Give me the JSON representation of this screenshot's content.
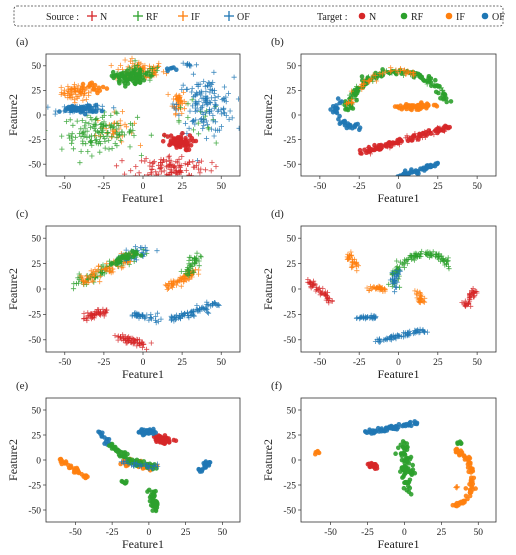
{
  "legend": {
    "source_label": "Source :",
    "target_label": "Target :",
    "entries": [
      {
        "name": "N",
        "color": "#d62728"
      },
      {
        "name": "RF",
        "color": "#2ca02c"
      },
      {
        "name": "IF",
        "color": "#ff7f0e"
      },
      {
        "name": "OF",
        "color": "#1f77b4"
      }
    ]
  },
  "colors": {
    "N": "#d62728",
    "RF": "#2ca02c",
    "IF": "#ff7f0e",
    "OF": "#1f77b4"
  },
  "chart_data": [
    {
      "id": "a",
      "type": "scatter",
      "panel_label": "(a)",
      "xlabel": "Feature1",
      "ylabel": "Feature2",
      "xlim": [
        -62,
        62
      ],
      "ylim": [
        -62,
        62
      ],
      "xticks": [
        -50,
        -25,
        0,
        25,
        50
      ],
      "yticks": [
        -50,
        -25,
        0,
        25,
        50
      ],
      "series": [
        {
          "name": "IF",
          "role": "source",
          "clusters": [
            {
              "cx": -42,
              "cy": 23,
              "sx": 5,
              "sy": 4,
              "n": 70
            },
            {
              "cx": -2,
              "cy": 45,
              "sx": 8,
              "sy": 5,
              "n": 80
            },
            {
              "cx": 23,
              "cy": 14,
              "sx": 2,
              "sy": 6,
              "n": 40
            },
            {
              "cx": -18,
              "cy": -15,
              "sx": 6,
              "sy": 8,
              "n": 30
            }
          ]
        },
        {
          "name": "RF",
          "role": "source",
          "clusters": [
            {
              "cx": -28,
              "cy": -18,
              "sx": 12,
              "sy": 9,
              "n": 130
            },
            {
              "cx": -2,
              "cy": 42,
              "sx": 7,
              "sy": 4,
              "n": 50
            },
            {
              "cx": 35,
              "cy": -10,
              "sx": 8,
              "sy": 12,
              "n": 20
            }
          ]
        },
        {
          "name": "OF",
          "role": "source",
          "clusters": [
            {
              "cx": -38,
              "cy": 6,
              "sx": 8,
              "sy": 2,
              "n": 55
            },
            {
              "cx": 40,
              "cy": 10,
              "sx": 9,
              "sy": 14,
              "n": 140
            },
            {
              "cx": 29,
              "cy": 51,
              "sx": 3,
              "sy": 2,
              "n": 10
            }
          ]
        },
        {
          "name": "N",
          "role": "source",
          "clusters": [
            {
              "cx": 18,
              "cy": -53,
              "sx": 12,
              "sy": 6,
              "n": 110
            }
          ]
        },
        {
          "name": "N",
          "role": "target",
          "clusters": [
            {
              "cx": 22,
              "cy": -28,
              "sx": 5,
              "sy": 4,
              "n": 60
            }
          ]
        },
        {
          "name": "RF",
          "role": "target",
          "clusters": [
            {
              "cx": -9,
              "cy": 38,
              "sx": 5,
              "sy": 4,
              "n": 70
            }
          ]
        },
        {
          "name": "IF",
          "role": "target",
          "clusters": [
            {
              "cx": -30,
              "cy": 27,
              "sx": 4,
              "sy": 3,
              "n": 15
            }
          ]
        },
        {
          "name": "OF",
          "role": "target",
          "clusters": [
            {
              "cx": -40,
              "cy": 6,
              "sx": 6,
              "sy": 2,
              "n": 45
            },
            {
              "cx": 17,
              "cy": 47,
              "sx": 2,
              "sy": 1,
              "n": 6
            }
          ]
        }
      ]
    },
    {
      "id": "b",
      "type": "scatter",
      "panel_label": "(b)",
      "xlabel": "Feature1",
      "ylabel": "Feature2",
      "xlim": [
        -62,
        62
      ],
      "ylim": [
        -62,
        62
      ],
      "xticks": [
        -50,
        -25,
        0,
        25,
        50
      ],
      "yticks": [
        -50,
        -25,
        0,
        25,
        50
      ],
      "series": [
        {
          "name": "RF",
          "role": "target",
          "arc": {
            "cx": 0,
            "cy": 0,
            "rx": 32,
            "ry": 44,
            "a0": 175,
            "a1": 20,
            "n": 110,
            "jit": 1.6
          }
        },
        {
          "name": "RF",
          "role": "source",
          "arc": {
            "cx": 0,
            "cy": 0,
            "rx": 32,
            "ry": 44,
            "a0": 170,
            "a1": 30,
            "n": 60,
            "jit": 1.6
          }
        },
        {
          "name": "IF",
          "role": "source",
          "arc": {
            "cx": 0,
            "cy": 0,
            "rx": 32,
            "ry": 44,
            "a0": 170,
            "a1": 70,
            "n": 45,
            "jit": 1.6
          }
        },
        {
          "name": "IF",
          "role": "target",
          "clusters": [
            {
              "cx": 12,
              "cy": 9,
              "sx": 6,
              "sy": 1.5,
              "n": 60
            }
          ]
        },
        {
          "name": "OF",
          "role": "target",
          "arc": {
            "cx": -24,
            "cy": 6,
            "rx": 16,
            "ry": 18,
            "a0": 150,
            "a1": 270,
            "n": 40,
            "jit": 1.2
          }
        },
        {
          "name": "N",
          "role": "target",
          "line": {
            "x0": -23,
            "y0": -38,
            "x1": 32,
            "y1": -12,
            "n": 90,
            "jit": 1.3
          }
        },
        {
          "name": "N",
          "role": "source",
          "line": {
            "x0": -20,
            "y0": -37,
            "x1": 32,
            "y1": -13,
            "n": 45,
            "jit": 1.6
          }
        },
        {
          "name": "OF",
          "role": "target",
          "line": {
            "x0": 0,
            "y0": -63,
            "x1": 24,
            "y1": -50,
            "n": 60,
            "jit": 1.1
          }
        }
      ]
    },
    {
      "id": "c",
      "type": "scatter",
      "panel_label": "(c)",
      "xlabel": "Feature1",
      "ylabel": "Feature2",
      "xlim": [
        -62,
        62
      ],
      "ylim": [
        -62,
        62
      ],
      "xticks": [
        -50,
        -25,
        0,
        25,
        50
      ],
      "yticks": [
        -50,
        -25,
        0,
        25,
        50
      ],
      "series": [
        {
          "name": "RF",
          "role": "source",
          "line": {
            "x0": -40,
            "y0": 6,
            "x1": -2,
            "y1": 37,
            "n": 90,
            "jit": 3
          }
        },
        {
          "name": "IF",
          "role": "source",
          "line": {
            "x0": -40,
            "y0": 6,
            "x1": -5,
            "y1": 33,
            "n": 60,
            "jit": 3
          }
        },
        {
          "name": "OF",
          "role": "source",
          "line": {
            "x0": -15,
            "y0": 25,
            "x1": 3,
            "y1": 40,
            "n": 35,
            "jit": 2.5
          }
        },
        {
          "name": "RF",
          "role": "target",
          "line": {
            "x0": -22,
            "y0": 25,
            "x1": 0,
            "y1": 37,
            "n": 25,
            "jit": 2
          }
        },
        {
          "name": "IF",
          "role": "source",
          "line": {
            "x0": 15,
            "y0": 1,
            "x1": 35,
            "y1": 18,
            "n": 70,
            "jit": 2
          }
        },
        {
          "name": "RF",
          "role": "source",
          "line": {
            "x0": 28,
            "y0": 14,
            "x1": 34,
            "y1": 34,
            "n": 40,
            "jit": 2
          }
        },
        {
          "name": "N",
          "role": "source",
          "line": {
            "x0": -38,
            "y0": -28,
            "x1": -24,
            "y1": -22,
            "n": 50,
            "jit": 1.6
          }
        },
        {
          "name": "N",
          "role": "source",
          "line": {
            "x0": -15,
            "y0": -47,
            "x1": 1,
            "y1": -56,
            "n": 55,
            "jit": 1.8
          }
        },
        {
          "name": "OF",
          "role": "source",
          "line": {
            "x0": -7,
            "y0": -25,
            "x1": 10,
            "y1": -29,
            "n": 40,
            "jit": 1.6
          }
        },
        {
          "name": "OF",
          "role": "source",
          "line": {
            "x0": 18,
            "y0": -30,
            "x1": 48,
            "y1": -15,
            "n": 80,
            "jit": 2
          }
        }
      ]
    },
    {
      "id": "d",
      "type": "scatter",
      "panel_label": "(d)",
      "xlabel": "Feature1",
      "ylabel": "Feature2",
      "xlim": [
        -62,
        62
      ],
      "ylim": [
        -62,
        62
      ],
      "xticks": [
        -50,
        -25,
        0,
        25,
        50
      ],
      "yticks": [
        -50,
        -25,
        0,
        25,
        50
      ],
      "series": [
        {
          "name": "N",
          "role": "source",
          "line": {
            "x0": -57,
            "y0": 8,
            "x1": -42,
            "y1": -13,
            "n": 50,
            "jit": 1.2
          }
        },
        {
          "name": "N",
          "role": "source",
          "line": {
            "x0": 42,
            "y0": -17,
            "x1": 49,
            "y1": -1,
            "n": 40,
            "jit": 1.2
          }
        },
        {
          "name": "IF",
          "role": "source",
          "line": {
            "x0": -31,
            "y0": 34,
            "x1": -27,
            "y1": 19,
            "n": 30,
            "jit": 1.5
          }
        },
        {
          "name": "IF",
          "role": "source",
          "clusters": [
            {
              "cx": -14,
              "cy": 0,
              "sx": 3,
              "sy": 1.5,
              "n": 30
            }
          ]
        },
        {
          "name": "IF",
          "role": "source",
          "line": {
            "x0": 10,
            "y0": -2,
            "x1": 16,
            "y1": -14,
            "n": 25,
            "jit": 1.5
          }
        },
        {
          "name": "RF",
          "role": "source",
          "arc": {
            "cx": 17,
            "cy": 3,
            "rx": 20,
            "ry": 32,
            "a0": 180,
            "a1": 35,
            "n": 110,
            "jit": 1.5
          }
        },
        {
          "name": "OF",
          "role": "source",
          "arc": {
            "cx": 17,
            "cy": 3,
            "rx": 20,
            "ry": 32,
            "a0": 190,
            "a1": 150,
            "n": 25,
            "jit": 1.2
          }
        },
        {
          "name": "OF",
          "role": "source",
          "line": {
            "x0": -27,
            "y0": -28,
            "x1": -14,
            "y1": -28,
            "n": 30,
            "jit": 0.8
          }
        },
        {
          "name": "OF",
          "role": "source",
          "line": {
            "x0": -13,
            "y0": -51,
            "x1": 17,
            "y1": -40,
            "n": 70,
            "jit": 1.3
          }
        }
      ]
    },
    {
      "id": "e",
      "type": "scatter",
      "panel_label": "(e)",
      "xlabel": "Feature1",
      "ylabel": "Feature2",
      "xlim": [
        -70,
        62
      ],
      "ylim": [
        -62,
        62
      ],
      "xticks": [
        -50,
        -25,
        0,
        25,
        50
      ],
      "yticks": [
        -50,
        -25,
        0,
        25,
        50
      ],
      "series": [
        {
          "name": "N",
          "role": "target",
          "clusters": [
            {
              "cx": 10,
              "cy": 20,
              "sx": 3,
              "sy": 2,
              "n": 50
            }
          ]
        },
        {
          "name": "OF",
          "role": "target",
          "line": {
            "x0": -6,
            "y0": 27,
            "x1": 4,
            "y1": 28,
            "n": 30,
            "jit": 1.3
          }
        },
        {
          "name": "OF",
          "role": "target",
          "line": {
            "x0": -33,
            "y0": 28,
            "x1": -27,
            "y1": 15,
            "n": 15,
            "jit": 1
          }
        },
        {
          "name": "OF",
          "role": "target",
          "line": {
            "x0": 34,
            "y0": -11,
            "x1": 42,
            "y1": -1,
            "n": 30,
            "jit": 1.2
          }
        },
        {
          "name": "IF",
          "role": "target",
          "line": {
            "x0": -60,
            "y0": 0,
            "x1": -42,
            "y1": -18,
            "n": 40,
            "jit": 1.3
          }
        },
        {
          "name": "IF",
          "role": "target",
          "line": {
            "x0": -22,
            "y0": -1,
            "x1": 5,
            "y1": -7,
            "n": 45,
            "jit": 1.5
          }
        },
        {
          "name": "RF",
          "role": "target",
          "line": {
            "x0": -25,
            "y0": 15,
            "x1": -10,
            "y1": -4,
            "n": 35,
            "jit": 1.5
          }
        },
        {
          "name": "RF",
          "role": "target",
          "line": {
            "x0": -12,
            "y0": -2,
            "x1": 2,
            "y1": -7,
            "n": 25,
            "jit": 1.5
          }
        },
        {
          "name": "RF",
          "role": "target",
          "line": {
            "x0": 1,
            "y0": -30,
            "x1": 5,
            "y1": -50,
            "n": 35,
            "jit": 1.3
          }
        },
        {
          "name": "RF",
          "role": "target",
          "clusters": [
            {
              "cx": -17,
              "cy": -22,
              "sx": 1,
              "sy": 1,
              "n": 6
            }
          ]
        },
        {
          "name": "OF",
          "role": "source",
          "line": {
            "x0": -22,
            "y0": -2,
            "x1": 5,
            "y1": -7,
            "n": 25,
            "jit": 1.5
          }
        }
      ]
    },
    {
      "id": "f",
      "type": "scatter",
      "panel_label": "(f)",
      "xlabel": "Feature1",
      "ylabel": "Feature2",
      "xlim": [
        -70,
        62
      ],
      "ylim": [
        -62,
        62
      ],
      "xticks": [
        -50,
        -25,
        0,
        25,
        50
      ],
      "yticks": [
        -50,
        -25,
        0,
        25,
        50
      ],
      "series": [
        {
          "name": "OF",
          "role": "target",
          "line": {
            "x0": -25,
            "y0": 27,
            "x1": 8,
            "y1": 37,
            "n": 60,
            "jit": 1.3
          }
        },
        {
          "name": "RF",
          "role": "target",
          "line": {
            "x0": -1,
            "y0": 18,
            "x1": 2,
            "y1": -33,
            "n": 60,
            "jit": 2.2
          }
        },
        {
          "name": "RF",
          "role": "target",
          "line": {
            "x0": -1,
            "y0": -8,
            "x1": 7,
            "y1": -13,
            "n": 15,
            "jit": 1.2
          }
        },
        {
          "name": "N",
          "role": "target",
          "clusters": [
            {
              "cx": -22,
              "cy": -5,
              "sx": 1.5,
              "sy": 1.5,
              "n": 20
            }
          ]
        },
        {
          "name": "IF",
          "role": "target",
          "clusters": [
            {
              "cx": -59,
              "cy": 8,
              "sx": 1,
              "sy": 0.8,
              "n": 6
            }
          ]
        },
        {
          "name": "IF",
          "role": "target",
          "arc": {
            "cx": 24,
            "cy": -18,
            "rx": 22,
            "ry": 32,
            "a0": 60,
            "a1": -60,
            "n": 75,
            "jit": 1.3
          }
        },
        {
          "name": "RF",
          "role": "target",
          "clusters": [
            {
              "cx": 38,
              "cy": 16,
              "sx": 1,
              "sy": 1,
              "n": 6
            }
          ]
        },
        {
          "name": "IF",
          "role": "source",
          "clusters": [
            {
              "cx": 35,
              "cy": -28,
              "sx": 1,
              "sy": 1,
              "n": 5
            }
          ]
        }
      ]
    }
  ]
}
